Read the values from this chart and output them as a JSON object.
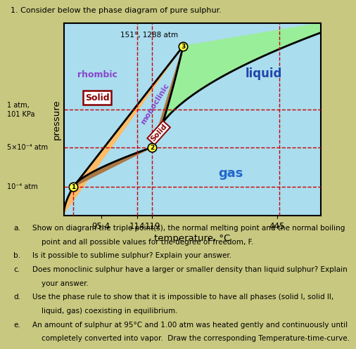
{
  "title": "1. Consider below the phase diagram of pure sulphur.",
  "xlabel": "temperature, °C",
  "ylabel": "pressure",
  "x_ticks_pos": [
    0.145,
    0.285,
    0.345,
    0.83
  ],
  "x_tick_labels": [
    "95.4",
    "114",
    "119",
    "445"
  ],
  "bg_color_outer": "#c8c880",
  "color_gas": "#aaddee",
  "color_rhombic": "#ffbb66",
  "color_monoclinic": "#aa7744",
  "color_liquid": "#99ee99",
  "color_rhombic_label": "#8844cc",
  "color_monoclinic_label": "#8844cc",
  "color_solid_text": "#880000",
  "color_gas_label": "#2266cc",
  "color_liquid_label": "#2244aa",
  "color_dash": "#cc0000",
  "color_tp": "#cc0000",
  "tp1_label": "151°, 1288 atm",
  "p_label1": "1 atm,",
  "p_label1b": "101 KPa",
  "p_label2": "5×10⁻⁴ atm",
  "p_label3": "10⁻⁴ atm",
  "questions": [
    [
      "a.",
      "Show on diagram the triple point(s), the normal melting point and the normal boiling"
    ],
    [
      "",
      "    point and all possible values for the degree of freedom, F."
    ],
    [
      "b.",
      "Is it possible to sublime sulphur? Explain your answer."
    ],
    [
      "c.",
      "Does monoclinic sulphur have a larger or smaller density than liquid sulphur? Explain"
    ],
    [
      "",
      "    your answer."
    ],
    [
      "d.",
      "Use the phase rule to show that it is impossible to have all phases (solid I, solid II,"
    ],
    [
      "",
      "    liquid, gas) coexisting in equilibrium."
    ],
    [
      "e.",
      "An amount of sulphur at 95°C and 1.00 atm was heated gently and continuously until"
    ],
    [
      "",
      "    completely converted into vapor.  Draw the corresponding Temperature-time-curve."
    ]
  ]
}
